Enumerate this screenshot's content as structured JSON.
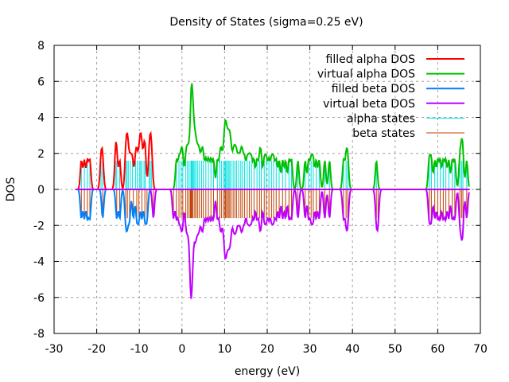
{
  "chart_data": {
    "type": "line",
    "title": "Density of States (sigma=0.25 eV)",
    "xlabel": "energy (eV)",
    "ylabel": "DOS",
    "xlim": [
      -30,
      70
    ],
    "ylim": [
      -8,
      8
    ],
    "xticks": [
      "-30",
      "-20",
      "-10",
      "0",
      "10",
      "20",
      "30",
      "40",
      "50",
      "60",
      "70"
    ],
    "yticks": [
      "-8",
      "-6",
      "-4",
      "-2",
      "0",
      "2",
      "4",
      "6",
      "8"
    ],
    "grid": true,
    "legend_position": "top-right",
    "sigma_eV": 0.25,
    "curve_range": [
      -25,
      67.5
    ],
    "series": [
      {
        "name": "filled alpha DOS",
        "color": "#ff0000",
        "sign": 1,
        "kind": "dos",
        "states": [
          -23.6,
          -22.9,
          -22.2,
          -21.6,
          -19.0,
          -18.6,
          -15.6,
          -15.3,
          -14.6,
          -13.2,
          -12.9,
          -12.6,
          -12.1,
          -11.6,
          -10.9,
          -10.5,
          -10.0,
          -9.7,
          -9.4,
          -8.9,
          -8.6,
          -7.7,
          -7.4,
          -7.1
        ]
      },
      {
        "name": "virtual alpha DOS",
        "color": "#00c000",
        "sign": 1,
        "kind": "dos",
        "states": [
          -1.3,
          -0.7,
          -0.2,
          0.2,
          0.9,
          1.3,
          1.7,
          2.1,
          2.2,
          2.3,
          2.5,
          2.7,
          3.0,
          3.3,
          3.7,
          4.1,
          4.6,
          5.0,
          5.6,
          6.2,
          6.8,
          7.4,
          8.3,
          8.9,
          9.3,
          9.8,
          10.1,
          10.3,
          10.6,
          10.9,
          11.2,
          11.5,
          12.0,
          12.4,
          12.8,
          13.3,
          13.8,
          14.2,
          14.7,
          15.3,
          15.8,
          16.3,
          16.9,
          17.6,
          18.2,
          18.6,
          19.3,
          19.8,
          20.4,
          21.0,
          21.5,
          22.1,
          22.8,
          23.6,
          24.3,
          25.1,
          25.7,
          27.2,
          28.9,
          29.7,
          30.3,
          30.8,
          31.5,
          32.2,
          33.5,
          34.6,
          37.9,
          38.5,
          38.9,
          45.6,
          58.0,
          58.5,
          59.3,
          60.0,
          60.6,
          61.3,
          61.9,
          62.6,
          63.4,
          64.0,
          65.2,
          65.6,
          65.9,
          66.8
        ]
      },
      {
        "name": "filled beta DOS",
        "color": "#0080ff",
        "sign": -1,
        "kind": "dos",
        "states": [
          -23.6,
          -22.9,
          -22.2,
          -21.6,
          -18.6,
          -15.3,
          -14.6,
          -13.2,
          -12.8,
          -12.3,
          -11.4,
          -10.6,
          -10.1,
          -9.4,
          -8.7,
          -8.2
        ]
      },
      {
        "name": "virtual beta DOS",
        "color": "#c000ff",
        "sign": -1,
        "kind": "dos",
        "states": [
          -6.7,
          -2.0,
          -1.3,
          -0.7,
          -0.2,
          0.2,
          0.9,
          1.3,
          1.7,
          2.0,
          2.1,
          2.2,
          2.4,
          2.6,
          3.0,
          3.3,
          3.7,
          4.1,
          4.6,
          5.0,
          5.6,
          6.2,
          6.8,
          7.4,
          8.3,
          8.9,
          9.3,
          9.8,
          10.1,
          10.3,
          10.6,
          10.9,
          11.2,
          11.5,
          12.0,
          12.4,
          12.8,
          13.3,
          13.8,
          14.2,
          14.7,
          15.3,
          15.8,
          16.3,
          16.9,
          17.6,
          18.2,
          18.6,
          19.3,
          19.8,
          20.4,
          21.0,
          21.5,
          22.1,
          22.8,
          23.6,
          24.3,
          25.1,
          25.7,
          27.2,
          28.9,
          29.7,
          30.3,
          30.8,
          31.5,
          32.2,
          33.5,
          34.6,
          37.9,
          38.5,
          38.9,
          45.6,
          46.0,
          58.0,
          58.5,
          59.3,
          60.0,
          60.6,
          61.3,
          61.9,
          62.6,
          63.4,
          64.0,
          65.2,
          65.6,
          65.9,
          66.8
        ]
      },
      {
        "name": "alpha states",
        "color": "#00e0e0",
        "sign": 1,
        "kind": "sticks",
        "ref": 0
      },
      {
        "name": "beta states",
        "color": "#c04000",
        "sign": -1,
        "kind": "sticks",
        "ref": 2
      }
    ]
  }
}
